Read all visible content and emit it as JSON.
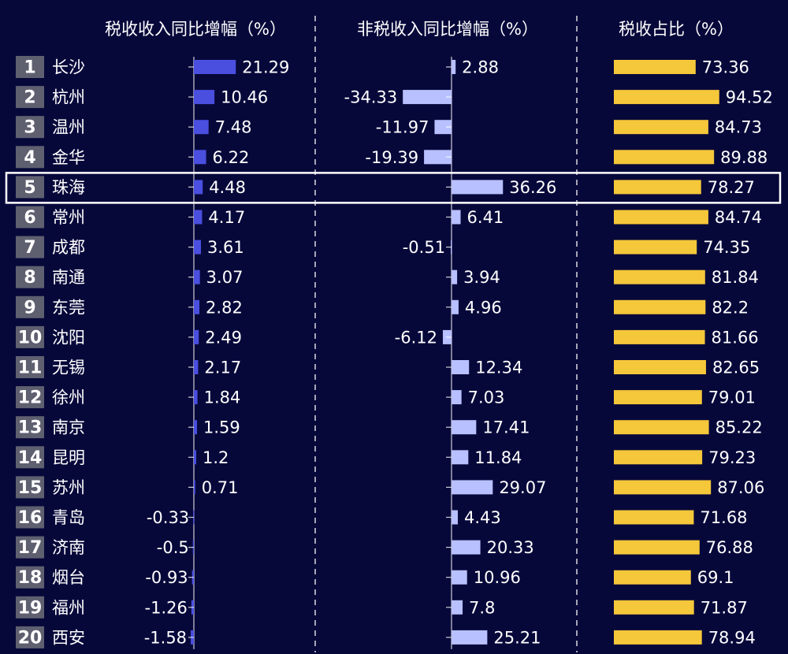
{
  "colors": {
    "background": "#07083a",
    "tax_growth_bar": "#4a4fe0",
    "nontax_growth_bar": "#b8c0ff",
    "tax_share_bar": "#f5c73a",
    "rank_box": "#5e6070",
    "axis": "#ffffff",
    "highlight_border": "#ffffff"
  },
  "chart_data": {
    "type": "bar",
    "categories": [
      "长沙",
      "杭州",
      "温州",
      "金华",
      "珠海",
      "常州",
      "成都",
      "南通",
      "东莞",
      "沈阳",
      "无锡",
      "徐州",
      "南京",
      "昆明",
      "苏州",
      "青岛",
      "济南",
      "烟台",
      "福州",
      "西安"
    ],
    "ranks": [
      "1",
      "2",
      "3",
      "4",
      "5",
      "6",
      "7",
      "8",
      "9",
      "10",
      "11",
      "12",
      "13",
      "14",
      "15",
      "16",
      "17",
      "18",
      "19",
      "20"
    ],
    "highlighted_category": "珠海",
    "series": [
      {
        "name": "税收收入同比增幅（%）",
        "values": [
          21.29,
          10.46,
          7.48,
          6.22,
          4.48,
          4.17,
          3.61,
          3.07,
          2.82,
          2.49,
          2.17,
          1.84,
          1.59,
          1.2,
          0.71,
          -0.33,
          -0.5,
          -0.93,
          -1.26,
          -1.58
        ],
        "labels": [
          "21.29",
          "10.46",
          "7.48",
          "6.22",
          "4.48",
          "4.17",
          "3.61",
          "3.07",
          "2.82",
          "2.49",
          "2.17",
          "1.84",
          "1.59",
          "1.2",
          "0.71",
          "-0.33",
          "-0.5",
          "-0.93",
          "-1.26",
          "-1.58"
        ]
      },
      {
        "name": "非税收入同比增幅（%）",
        "values": [
          2.88,
          -34.33,
          -11.97,
          -19.39,
          36.26,
          6.41,
          -0.51,
          3.94,
          4.96,
          -6.12,
          12.34,
          7.03,
          17.41,
          11.84,
          29.07,
          4.43,
          20.33,
          10.96,
          7.8,
          25.21
        ],
        "labels": [
          "2.88",
          "-34.33",
          "-11.97",
          "-19.39",
          "36.26",
          "6.41",
          "-0.51",
          "3.94",
          "4.96",
          "-6.12",
          "12.34",
          "7.03",
          "17.41",
          "11.84",
          "29.07",
          "4.43",
          "20.33",
          "10.96",
          "7.8",
          "25.21"
        ]
      },
      {
        "name": "税收占比（%）",
        "values": [
          73.36,
          94.52,
          84.73,
          89.88,
          78.27,
          84.74,
          74.35,
          81.84,
          82.2,
          81.66,
          82.65,
          79.01,
          85.22,
          79.23,
          87.06,
          71.68,
          76.88,
          69.1,
          71.87,
          78.94
        ],
        "labels": [
          "73.36",
          "94.52",
          "84.73",
          "89.88",
          "78.27",
          "84.74",
          "74.35",
          "81.84",
          "82.2",
          "81.66",
          "82.65",
          "79.01",
          "85.22",
          "79.23",
          "87.06",
          "71.68",
          "76.88",
          "69.1",
          "71.87",
          "78.94"
        ]
      }
    ],
    "grid": false,
    "legend": "none"
  }
}
